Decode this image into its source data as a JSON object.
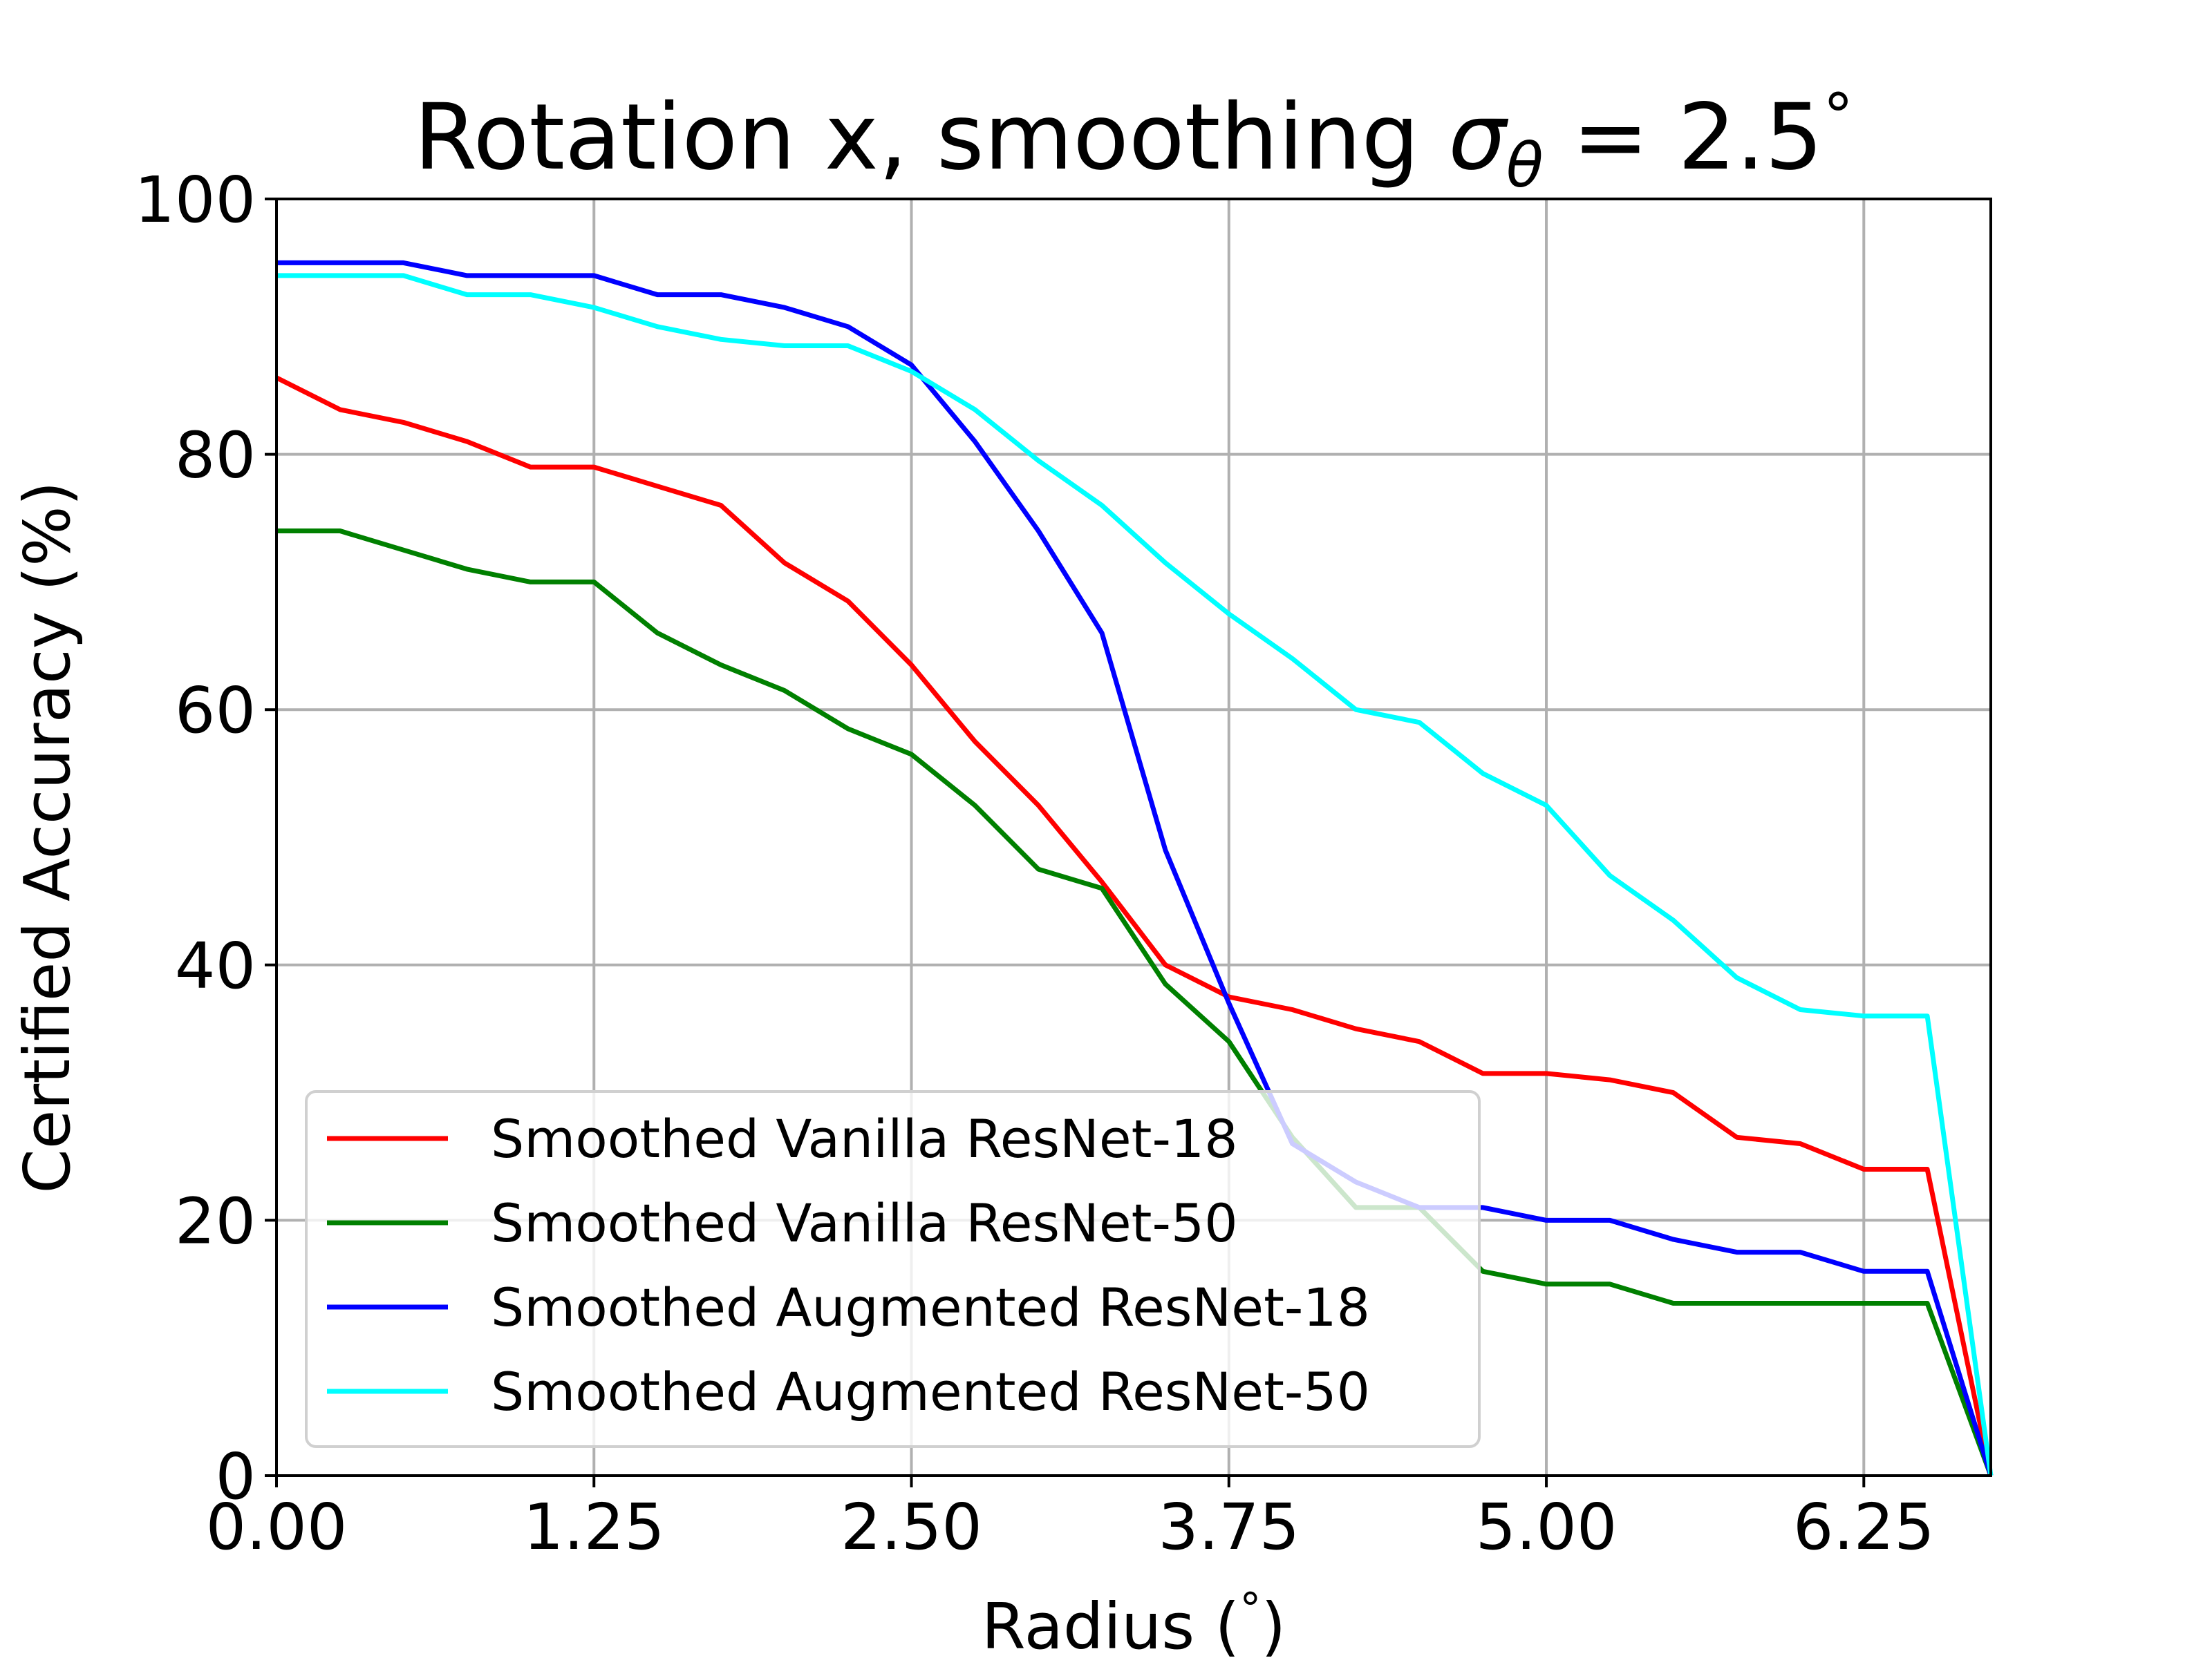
{
  "chart_data": {
    "type": "line",
    "title_text": "Rotation x, smoothing ",
    "title_math": "σ",
    "title_math_sub": "θ",
    "title_tail": " = 2.5",
    "title_degree": "°",
    "xlabel_text": "Radius (",
    "xlabel_degree": "°",
    "xlabel_close": ")",
    "ylabel": "Certified Accuracy (%)",
    "xlim": [
      0,
      6.75
    ],
    "ylim": [
      0,
      100
    ],
    "xticks": [
      0.0,
      1.25,
      2.5,
      3.75,
      5.0,
      6.25
    ],
    "xtick_labels": [
      "0.00",
      "1.25",
      "2.50",
      "3.75",
      "5.00",
      "6.25"
    ],
    "yticks": [
      0,
      20,
      40,
      60,
      80,
      100
    ],
    "ytick_labels": [
      "0",
      "20",
      "40",
      "60",
      "80",
      "100"
    ],
    "grid": true,
    "legend_position": "lower-left",
    "x": [
      0,
      0.25,
      0.5,
      0.75,
      1.0,
      1.25,
      1.5,
      1.75,
      2.0,
      2.25,
      2.5,
      2.75,
      3.0,
      3.25,
      3.5,
      3.75,
      4.0,
      4.25,
      4.5,
      4.75,
      5.0,
      5.25,
      5.5,
      5.75,
      6.0,
      6.25,
      6.5,
      6.75
    ],
    "series": [
      {
        "name": "Smoothed Vanilla ResNet-18",
        "color": "#ff0000",
        "values": [
          86,
          83.5,
          82.5,
          81,
          79,
          79,
          77.5,
          76,
          71.5,
          68.5,
          63.5,
          57.5,
          52.5,
          46.5,
          40,
          37.5,
          36.5,
          35,
          34,
          31.5,
          31.5,
          31,
          30,
          26.5,
          26,
          24,
          24,
          0
        ]
      },
      {
        "name": "Smoothed Vanilla ResNet-50",
        "color": "#008000",
        "values": [
          74,
          74,
          72.5,
          71,
          70,
          70,
          66,
          63.5,
          61.5,
          58.5,
          56.5,
          52.5,
          47.5,
          46,
          38.5,
          34,
          26.5,
          21,
          21,
          16,
          15,
          15,
          13.5,
          13.5,
          13.5,
          13.5,
          13.5,
          0
        ]
      },
      {
        "name": "Smoothed Augmented ResNet-18",
        "color": "#0000ff",
        "values": [
          95,
          95,
          95,
          94,
          94,
          94,
          92.5,
          92.5,
          91.5,
          90,
          87,
          81,
          74,
          66,
          49,
          37,
          26,
          23,
          21,
          21,
          20,
          20,
          18.5,
          17.5,
          17.5,
          16,
          16,
          0
        ]
      },
      {
        "name": "Smoothed Augmented ResNet-50",
        "color": "#00ffff",
        "values": [
          94,
          94,
          94,
          92.5,
          92.5,
          91.5,
          90,
          89,
          88.5,
          88.5,
          86.5,
          83.5,
          79.5,
          76,
          71.5,
          67.5,
          64,
          60,
          59,
          55,
          52.5,
          47,
          43.5,
          39,
          36.5,
          36,
          36,
          0
        ]
      }
    ]
  }
}
